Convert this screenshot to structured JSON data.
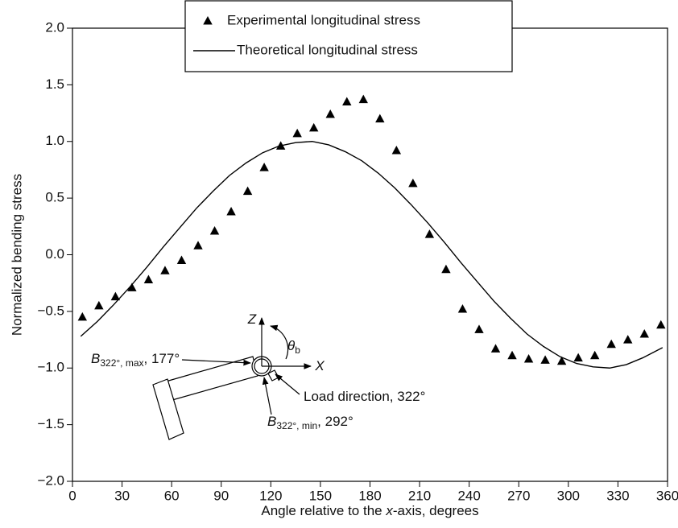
{
  "chart_data": {
    "type": "scatter",
    "series": [
      {
        "name": "Experimental longitudinal stress",
        "type": "scatter",
        "marker": "triangle",
        "color": "#000000",
        "x": [
          6,
          16,
          26,
          36,
          46,
          56,
          66,
          76,
          86,
          96,
          106,
          116,
          126,
          136,
          146,
          156,
          166,
          176,
          186,
          196,
          206,
          216,
          226,
          236,
          246,
          256,
          266,
          276,
          286,
          296,
          306,
          316,
          326,
          336,
          346,
          356
        ],
        "values": [
          -0.55,
          -0.45,
          -0.37,
          -0.29,
          -0.22,
          -0.14,
          -0.05,
          0.08,
          0.21,
          0.38,
          0.56,
          0.77,
          0.96,
          1.07,
          1.12,
          1.24,
          1.35,
          1.37,
          1.2,
          0.92,
          0.63,
          0.18,
          -0.13,
          -0.48,
          -0.66,
          -0.83,
          -0.89,
          -0.92,
          -0.93,
          -0.94,
          -0.91,
          -0.89,
          -0.79,
          -0.75,
          -0.7,
          -0.62
        ]
      },
      {
        "name": "Theoretical longitudinal stress",
        "type": "line",
        "color": "#000000",
        "x": [
          5,
          15,
          25,
          35,
          45,
          55,
          65,
          75,
          85,
          95,
          105,
          115,
          125,
          135,
          145,
          155,
          165,
          175,
          185,
          195,
          205,
          215,
          225,
          235,
          245,
          255,
          265,
          275,
          285,
          295,
          305,
          315,
          325,
          335,
          345,
          357
        ],
        "values": [
          -0.72,
          -0.59,
          -0.44,
          -0.28,
          -0.11,
          0.07,
          0.24,
          0.41,
          0.56,
          0.7,
          0.81,
          0.9,
          0.96,
          0.99,
          1.0,
          0.97,
          0.91,
          0.83,
          0.72,
          0.59,
          0.44,
          0.28,
          0.11,
          -0.07,
          -0.24,
          -0.41,
          -0.56,
          -0.7,
          -0.81,
          -0.9,
          -0.96,
          -0.99,
          -1.0,
          -0.97,
          -0.91,
          -0.82
        ]
      }
    ],
    "xlabel": [
      "Angle relative to the ",
      "x",
      "-axis, degrees"
    ],
    "ylabel": "Normalized bending stress",
    "xlim": [
      0,
      360
    ],
    "xticks": [
      0,
      30,
      60,
      90,
      120,
      150,
      180,
      210,
      240,
      270,
      300,
      330,
      360
    ],
    "ylim": [
      -2,
      2
    ],
    "yticks": [
      {
        "value": -2,
        "label": "−2.0"
      },
      {
        "value": -1.5,
        "label": "−1.5"
      },
      {
        "value": -1,
        "label": "−1.0"
      },
      {
        "value": -0.5,
        "label": "−0.5"
      },
      {
        "value": 0,
        "label": "0.0"
      },
      {
        "value": 0.5,
        "label": "0.5"
      },
      {
        "value": 1,
        "label": "1.0"
      },
      {
        "value": 1.5,
        "label": "1.5"
      },
      {
        "value": 2,
        "label": "2.0"
      }
    ],
    "legend": "top-center",
    "annotations": [
      {
        "parts": [
          "Z"
        ]
      },
      {
        "parts": [
          "X"
        ]
      },
      {
        "parts": [
          "θ",
          "b"
        ]
      },
      {
        "parts": [
          "B",
          "322°, max",
          ", 177°"
        ]
      },
      {
        "parts": [
          "Load direction, 322°"
        ]
      },
      {
        "parts": [
          "B",
          "322°, min",
          ", 292°"
        ]
      }
    ]
  }
}
